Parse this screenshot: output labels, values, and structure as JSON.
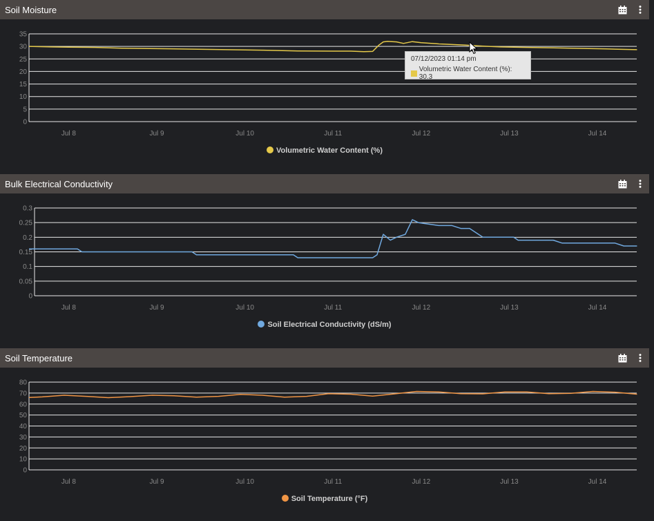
{
  "panels": [
    {
      "title": "Soil Moisture",
      "legend": "Volumetric Water Content (%)"
    },
    {
      "title": "Bulk Electrical Conductivity",
      "legend": "Soil Electrical Conductivity (dS/m)"
    },
    {
      "title": "Soil Temperature",
      "legend": "Soil Temperature (°F)"
    }
  ],
  "colors": {
    "moisture": "#e5c94a",
    "conductivity": "#70a9e0",
    "temperature": "#f09545"
  },
  "tooltip": {
    "timestamp": "07/12/2023 01:14 pm",
    "series_label": "Volumetric Water Content (%): 30.3"
  },
  "chart_data": [
    {
      "type": "line",
      "title": "Soil Moisture",
      "x_tick_labels": [
        "Jul 8",
        "Jul 9",
        "Jul 10",
        "Jul 11",
        "Jul 12",
        "Jul 13",
        "Jul 14"
      ],
      "y_tick_labels": [
        "0",
        "5",
        "10",
        "15",
        "20",
        "25",
        "30",
        "35"
      ],
      "ylim": [
        0,
        35
      ],
      "xlim": [
        7.55,
        14.45
      ],
      "grid": true,
      "legend_position": "bottom",
      "series": [
        {
          "name": "Volumetric Water Content (%)",
          "x": [
            7.55,
            7.8,
            8.0,
            8.3,
            8.6,
            9.0,
            9.4,
            9.8,
            10.2,
            10.6,
            11.0,
            11.2,
            11.35,
            11.45,
            11.52,
            11.57,
            11.62,
            11.72,
            11.8,
            11.9,
            12.0,
            12.2,
            12.5,
            12.7,
            12.9,
            13.2,
            13.5,
            13.8,
            14.1,
            14.45
          ],
          "values": [
            30.0,
            29.8,
            29.7,
            29.6,
            29.3,
            29.1,
            28.9,
            28.7,
            28.5,
            28.2,
            28.1,
            28.1,
            27.9,
            28.0,
            30.5,
            31.8,
            32.0,
            31.8,
            31.2,
            31.9,
            31.5,
            31.0,
            30.5,
            30.1,
            29.8,
            29.6,
            29.4,
            29.2,
            29.0,
            28.7
          ]
        }
      ]
    },
    {
      "type": "line",
      "title": "Bulk Electrical Conductivity",
      "x_tick_labels": [
        "Jul 8",
        "Jul 9",
        "Jul 10",
        "Jul 11",
        "Jul 12",
        "Jul 13",
        "Jul 14"
      ],
      "y_tick_labels": [
        "0",
        "0.05",
        "0.1",
        "0.15",
        "0.2",
        "0.25",
        "0.3"
      ],
      "ylim": [
        0,
        0.3
      ],
      "xlim": [
        7.55,
        14.45
      ],
      "grid": true,
      "legend_position": "bottom",
      "series": [
        {
          "name": "Soil Electrical Conductivity (dS/m)",
          "x": [
            7.55,
            8.0,
            8.1,
            8.15,
            8.6,
            9.0,
            9.4,
            9.45,
            9.7,
            10.3,
            10.55,
            10.6,
            11.0,
            11.45,
            11.5,
            11.57,
            11.65,
            11.72,
            11.82,
            11.9,
            11.97,
            12.2,
            12.35,
            12.45,
            12.55,
            12.7,
            13.05,
            13.1,
            13.5,
            13.6,
            14.2,
            14.3,
            14.45
          ],
          "values": [
            0.16,
            0.16,
            0.16,
            0.15,
            0.15,
            0.15,
            0.15,
            0.14,
            0.14,
            0.14,
            0.14,
            0.13,
            0.13,
            0.13,
            0.14,
            0.21,
            0.19,
            0.2,
            0.21,
            0.26,
            0.25,
            0.24,
            0.24,
            0.23,
            0.23,
            0.2,
            0.2,
            0.19,
            0.19,
            0.18,
            0.18,
            0.17,
            0.17
          ]
        }
      ]
    },
    {
      "type": "line",
      "title": "Soil Temperature",
      "x_tick_labels": [
        "Jul 8",
        "Jul 9",
        "Jul 10",
        "Jul 11",
        "Jul 12",
        "Jul 13",
        "Jul 14"
      ],
      "y_tick_labels": [
        "0",
        "10",
        "20",
        "30",
        "40",
        "50",
        "60",
        "70",
        "80"
      ],
      "ylim": [
        0,
        80
      ],
      "xlim": [
        7.55,
        14.45
      ],
      "grid": true,
      "legend_position": "bottom",
      "series": [
        {
          "name": "Soil Temperature (°F)",
          "x": [
            7.55,
            7.7,
            7.95,
            8.2,
            8.45,
            8.7,
            8.95,
            9.2,
            9.45,
            9.7,
            9.95,
            10.2,
            10.45,
            10.7,
            10.95,
            11.2,
            11.45,
            11.7,
            11.95,
            12.2,
            12.45,
            12.7,
            12.95,
            13.2,
            13.45,
            13.7,
            13.95,
            14.2,
            14.45
          ],
          "values": [
            66.0,
            66.5,
            68.0,
            67.0,
            65.8,
            66.8,
            68.0,
            67.5,
            66.3,
            67.0,
            68.8,
            68.0,
            66.3,
            67.0,
            69.5,
            69.0,
            67.3,
            69.3,
            71.5,
            71.0,
            69.5,
            69.3,
            71.0,
            71.0,
            69.5,
            69.8,
            71.5,
            70.8,
            69.0
          ]
        }
      ]
    }
  ]
}
